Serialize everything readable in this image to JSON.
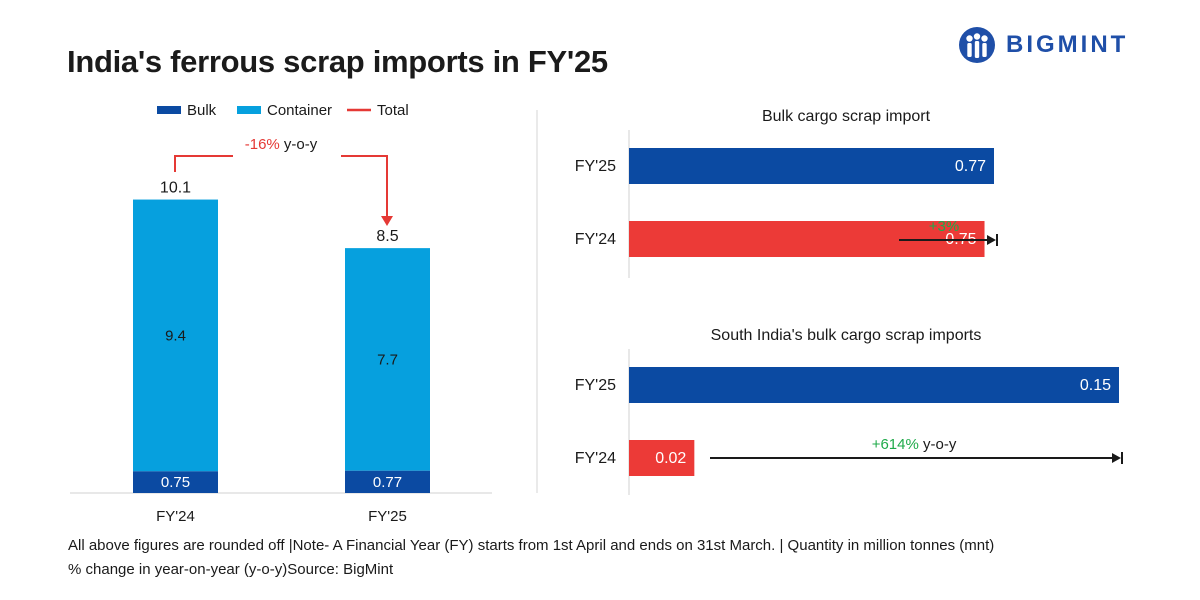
{
  "title": "India's ferrous scrap imports in FY'25",
  "brand": {
    "name": "BIGMINT",
    "color": "#1f4fa8",
    "icon": "bigmint-logo-icon"
  },
  "colors": {
    "bulk": "#0b4aa2",
    "container": "#06a0de",
    "total": "#e53935",
    "fy24_bar": "#ec3a37",
    "positive": "#1faa4a",
    "arrow": "#1a1a1a"
  },
  "footnote": {
    "line1": "All above figures are rounded off |Note- A Financial Year (FY) starts from 1st April and ends on 31st March. | Quantity in million tonnes (mnt)",
    "line2": "% change in year-on-year (y-o-y)Source: BigMint"
  },
  "chart_data": [
    {
      "type": "bar",
      "stacked": true,
      "categories": [
        "FY'24",
        "FY'25"
      ],
      "series": [
        {
          "name": "Bulk",
          "values": [
            0.75,
            0.77
          ]
        },
        {
          "name": "Container",
          "values": [
            9.4,
            7.7
          ]
        }
      ],
      "totals": {
        "name": "Total",
        "values": [
          10.1,
          8.5
        ]
      },
      "data_labels": {
        "bulk": [
          "0.75",
          "0.77"
        ],
        "container": [
          "9.4",
          "7.7"
        ],
        "totals": [
          "10.1",
          "8.5"
        ]
      },
      "legend": {
        "position": "top",
        "entries": [
          "Bulk",
          "Container",
          "Total"
        ]
      },
      "annotation": {
        "pct": "-16%",
        "suffix": "y-o-y"
      },
      "ylim": [
        0,
        10.1
      ]
    },
    {
      "type": "bar",
      "orientation": "horizontal",
      "title": "Bulk cargo scrap import",
      "categories": [
        "FY'25",
        "FY'24"
      ],
      "values": [
        0.77,
        0.75
      ],
      "labels": [
        "0.77",
        "0.75"
      ],
      "annotation": {
        "pct": "+3%",
        "suffix": ""
      },
      "xlim": [
        0,
        0.77
      ]
    },
    {
      "type": "bar",
      "orientation": "horizontal",
      "title": "South India's bulk cargo scrap imports",
      "categories": [
        "FY'25",
        "FY'24"
      ],
      "values": [
        0.15,
        0.02
      ],
      "labels": [
        "0.15",
        "0.02"
      ],
      "annotation": {
        "pct": "+614%",
        "suffix": "y-o-y"
      },
      "xlim": [
        0,
        0.15
      ]
    }
  ]
}
